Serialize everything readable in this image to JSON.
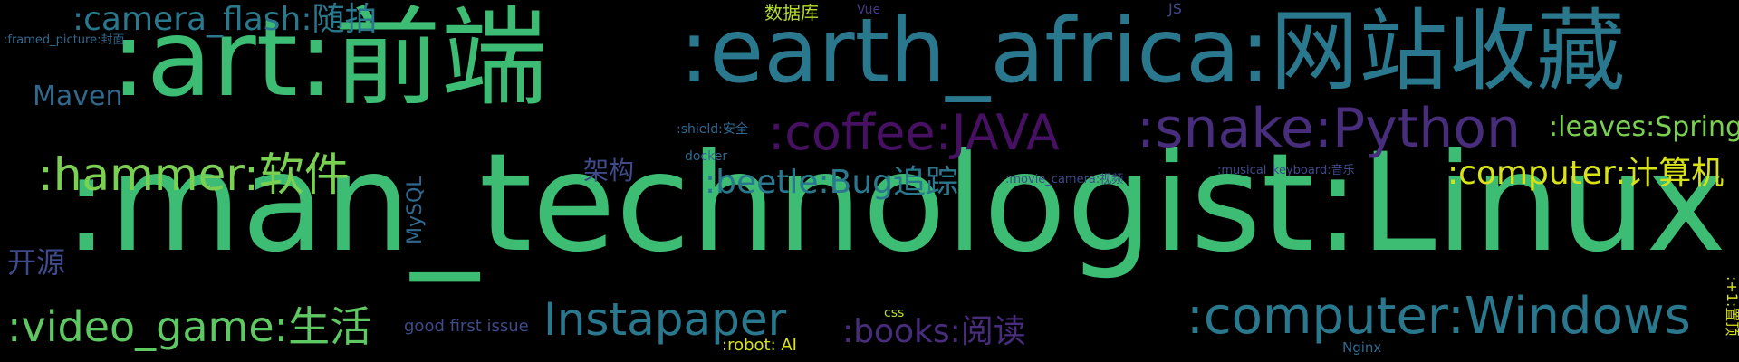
{
  "background_color": "#000000",
  "words": {
    "man_technologist_linux": {
      "text": ":man_technologist:Linux",
      "color": "#3dbc74"
    },
    "art_frontend": {
      "text": ":art:前端",
      "color": "#3dbc74"
    },
    "earth_africa_bookmarks": {
      "text": ":earth_africa:网站收藏",
      "color": "#2a788e"
    },
    "snake_python": {
      "text": ":snake:Python",
      "color": "#472d7b"
    },
    "coffee_java": {
      "text": ":coffee:JAVA",
      "color": "#471063"
    },
    "hammer_software": {
      "text": ":hammer:软件",
      "color": "#7ad151"
    },
    "computer_windows": {
      "text": ":computer:Windows",
      "color": "#2a788e"
    },
    "computer_calculator": {
      "text": ":computer:计算机",
      "color": "#d8e219"
    },
    "video_game_life": {
      "text": ":video_game:生活",
      "color": "#5ec962"
    },
    "instapaper": {
      "text": "Instapaper",
      "color": "#2a788e"
    },
    "camera_flash_snap": {
      "text": ":camera_flash:随拍",
      "color": "#2a788e"
    },
    "beetle_bug": {
      "text": ":beetle:Bug追踪",
      "color": "#2a788e"
    },
    "books_reading": {
      "text": ":books:阅读",
      "color": "#472d7b"
    },
    "leaves_spring": {
      "text": ":leaves:Spring",
      "color": "#7ad151"
    },
    "maven": {
      "text": "Maven",
      "color": "#31688e"
    },
    "architecture": {
      "text": "架构",
      "color": "#3e4a89"
    },
    "open_source": {
      "text": "开源",
      "color": "#3e4a89"
    },
    "mysql": {
      "text": "MySQL",
      "color": "#31688e"
    },
    "database": {
      "text": "数据库",
      "color": "#b5de2b"
    },
    "good_first_issue": {
      "text": "good first issue",
      "color": "#3e4a89"
    },
    "robot_ai": {
      "text": ":robot: AI",
      "color": "#d8e219"
    },
    "shield_security": {
      "text": ":shield:安全",
      "color": "#31688e"
    },
    "docker": {
      "text": "docker",
      "color": "#31688e"
    },
    "vue": {
      "text": "Vue",
      "color": "#443a83"
    },
    "js": {
      "text": "JS",
      "color": "#3e4a89"
    },
    "framed_picture_cover": {
      "text": ":framed_picture:封面",
      "color": "#31688e"
    },
    "movie_camera_video": {
      "text": ":movie_camera:视频",
      "color": "#3e4a89"
    },
    "musical_keyboard_music": {
      "text": ":musical_keyboard:音乐",
      "color": "#3e4a89"
    },
    "css": {
      "text": "css",
      "color": "#b5de2b"
    },
    "nginx": {
      "text": "Nginx",
      "color": "#31688e"
    },
    "plus_one_pin_top": {
      "text": ":+1:置顶",
      "color": "#d8e219"
    }
  }
}
